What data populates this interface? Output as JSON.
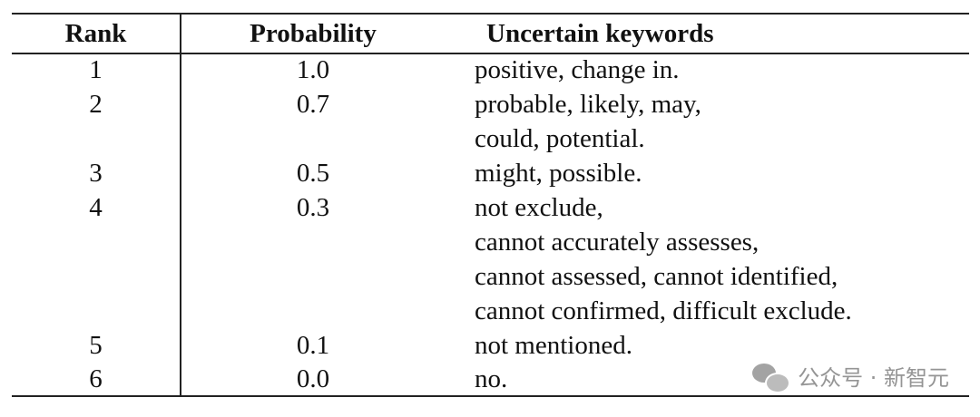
{
  "table": {
    "headers": {
      "rank": "Rank",
      "probability": "Probability",
      "keywords": "Uncertain keywords"
    },
    "rows": [
      {
        "rank": "1",
        "probability": "1.0",
        "keywords": [
          "positive, change in."
        ]
      },
      {
        "rank": "2",
        "probability": "0.7",
        "keywords": [
          "probable, likely, may,",
          "could, potential."
        ]
      },
      {
        "rank": "3",
        "probability": "0.5",
        "keywords": [
          "might, possible."
        ]
      },
      {
        "rank": "4",
        "probability": "0.3",
        "keywords": [
          "not exclude,",
          "cannot accurately assesses,",
          "cannot assessed, cannot identified,",
          "cannot confirmed, difficult exclude."
        ]
      },
      {
        "rank": "5",
        "probability": "0.1",
        "keywords": [
          "not mentioned."
        ]
      },
      {
        "rank": "6",
        "probability": "0.0",
        "keywords": [
          "no."
        ]
      }
    ]
  },
  "watermark": {
    "icon": "wechat-icon",
    "text": "公众号 · 新智元"
  }
}
